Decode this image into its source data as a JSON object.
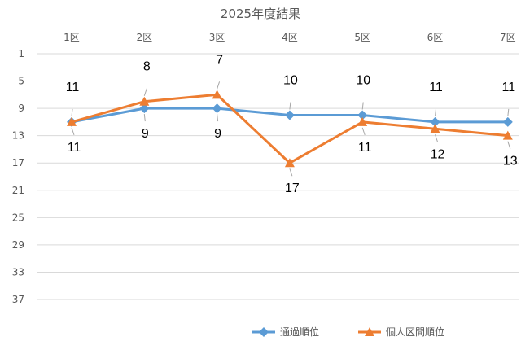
{
  "chart_data": {
    "type": "line",
    "title": "2025年度結果",
    "categories": [
      "1区",
      "2区",
      "3区",
      "4区",
      "5区",
      "6区",
      "7区"
    ],
    "y_axis": {
      "reversed": true,
      "ylim": [
        1,
        37
      ],
      "ticks": [
        1,
        5,
        9,
        13,
        17,
        21,
        25,
        29,
        33,
        37
      ]
    },
    "grid": true,
    "legend_position": "bottom",
    "series": [
      {
        "name": "通過順位",
        "values": [
          11,
          9,
          9,
          10,
          10,
          11,
          11
        ],
        "color": "#5b9bd5",
        "marker": "diamond",
        "label_side": [
          "above",
          "below",
          "below",
          "above",
          "above",
          "above",
          "above"
        ]
      },
      {
        "name": "個人区間順位",
        "values": [
          11,
          8,
          7,
          17,
          11,
          12,
          13
        ],
        "color": "#ed7d31",
        "marker": "triangle",
        "label_side": [
          "below",
          "above",
          "above",
          "below",
          "below",
          "below",
          "below"
        ]
      }
    ]
  }
}
